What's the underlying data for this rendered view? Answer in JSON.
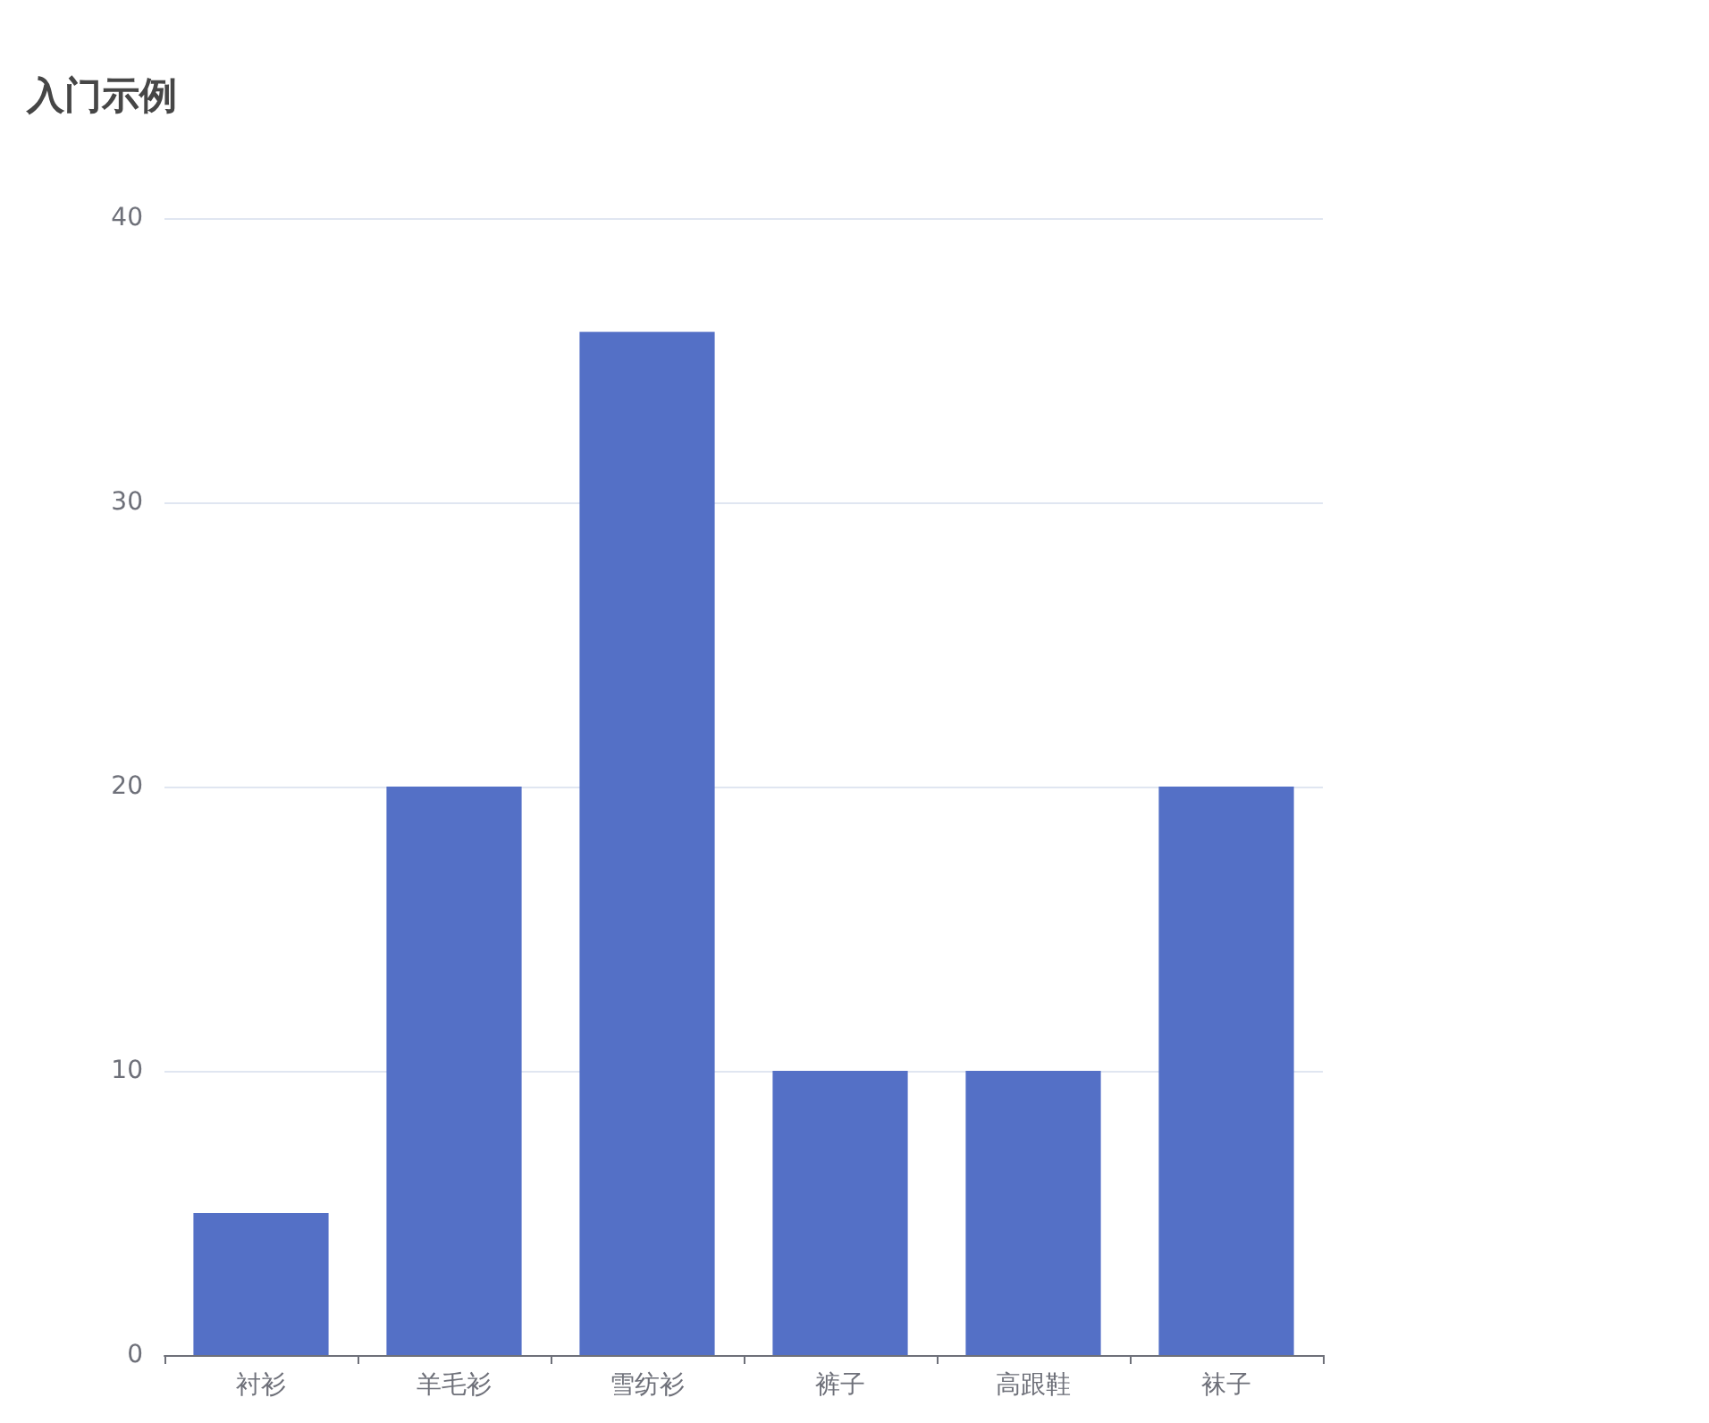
{
  "chart_data": {
    "type": "bar",
    "title": "入门示例",
    "categories": [
      "衬衫",
      "羊毛衫",
      "雪纺衫",
      "裤子",
      "高跟鞋",
      "袜子"
    ],
    "values": [
      5,
      20,
      36,
      10,
      10,
      20
    ],
    "color": "#5470c6",
    "ylim": [
      0,
      40
    ],
    "yticks": [
      0,
      10,
      20,
      30,
      40
    ],
    "grid": "y"
  }
}
